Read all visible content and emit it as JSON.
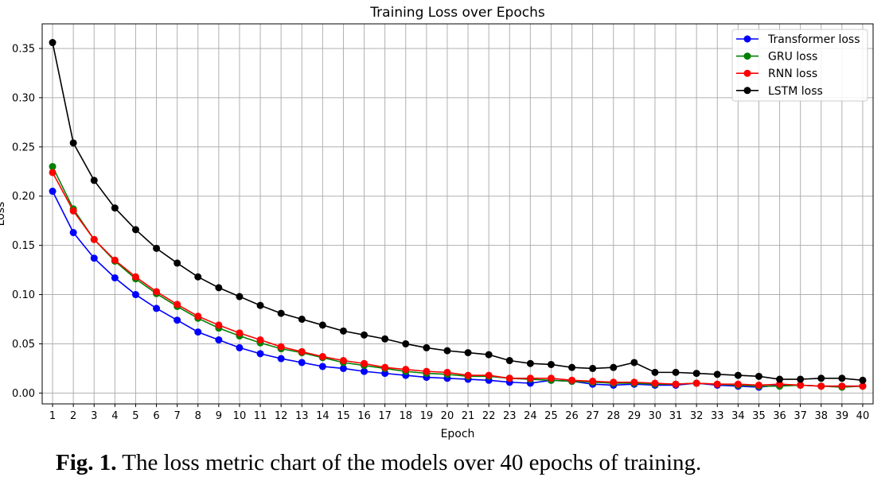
{
  "caption": {
    "label": "Fig. 1.",
    "text": " The loss metric chart of the models over 40 epochs of training."
  },
  "chart_data": {
    "type": "line",
    "title": "Training Loss over Epochs",
    "xlabel": "Epoch",
    "ylabel": "Loss",
    "x": [
      1,
      2,
      3,
      4,
      5,
      6,
      7,
      8,
      9,
      10,
      11,
      12,
      13,
      14,
      15,
      16,
      17,
      18,
      19,
      20,
      21,
      22,
      23,
      24,
      25,
      26,
      27,
      28,
      29,
      30,
      31,
      32,
      33,
      34,
      35,
      36,
      37,
      38,
      39,
      40
    ],
    "ylim": [
      -0.011,
      0.375
    ],
    "yticks": [
      0.0,
      0.05,
      0.1,
      0.15,
      0.2,
      0.25,
      0.3,
      0.35
    ],
    "ytick_labels": [
      "0.00",
      "0.05",
      "0.10",
      "0.15",
      "0.20",
      "0.25",
      "0.30",
      "0.35"
    ],
    "grid": true,
    "legend_position": "top-right",
    "series": [
      {
        "name": "Transformer loss",
        "color": "#0000ff",
        "values": [
          0.205,
          0.163,
          0.137,
          0.117,
          0.1,
          0.086,
          0.074,
          0.062,
          0.054,
          0.046,
          0.04,
          0.035,
          0.031,
          0.027,
          0.025,
          0.022,
          0.02,
          0.018,
          0.016,
          0.015,
          0.014,
          0.013,
          0.011,
          0.01,
          0.013,
          0.012,
          0.009,
          0.008,
          0.009,
          0.008,
          0.008,
          0.01,
          0.008,
          0.007,
          0.006,
          0.008,
          0.008,
          0.007,
          0.007,
          0.007
        ]
      },
      {
        "name": "GRU loss",
        "color": "#008000",
        "values": [
          0.23,
          0.187,
          0.156,
          0.134,
          0.116,
          0.101,
          0.088,
          0.076,
          0.066,
          0.058,
          0.051,
          0.045,
          0.041,
          0.036,
          0.031,
          0.028,
          0.025,
          0.022,
          0.02,
          0.019,
          0.017,
          0.017,
          0.015,
          0.014,
          0.013,
          0.012,
          0.011,
          0.01,
          0.01,
          0.009,
          0.009,
          0.01,
          0.009,
          0.008,
          0.007,
          0.007,
          0.008,
          0.007,
          0.006,
          0.007
        ]
      },
      {
        "name": "RNN loss",
        "color": "#ff0000",
        "values": [
          0.224,
          0.185,
          0.156,
          0.135,
          0.118,
          0.103,
          0.09,
          0.078,
          0.069,
          0.061,
          0.054,
          0.047,
          0.042,
          0.037,
          0.033,
          0.03,
          0.026,
          0.024,
          0.022,
          0.021,
          0.018,
          0.018,
          0.015,
          0.015,
          0.015,
          0.013,
          0.012,
          0.011,
          0.011,
          0.01,
          0.009,
          0.01,
          0.009,
          0.009,
          0.008,
          0.009,
          0.008,
          0.007,
          0.007,
          0.007
        ]
      },
      {
        "name": "LSTM loss",
        "color": "#000000",
        "values": [
          0.356,
          0.254,
          0.216,
          0.188,
          0.166,
          0.147,
          0.132,
          0.118,
          0.107,
          0.098,
          0.089,
          0.081,
          0.075,
          0.069,
          0.063,
          0.059,
          0.055,
          0.05,
          0.046,
          0.043,
          0.041,
          0.039,
          0.033,
          0.03,
          0.029,
          0.026,
          0.025,
          0.026,
          0.031,
          0.021,
          0.021,
          0.02,
          0.019,
          0.018,
          0.017,
          0.014,
          0.014,
          0.015,
          0.015,
          0.013
        ]
      }
    ]
  }
}
